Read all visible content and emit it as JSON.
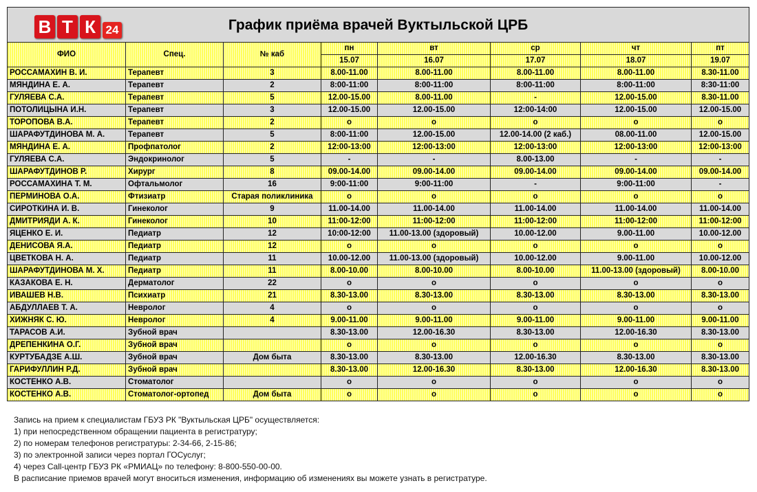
{
  "logo": {
    "letters": [
      "В",
      "Т",
      "К"
    ],
    "number": "24"
  },
  "table": {
    "title": "График приёма врачей Вуктыльской ЦРБ",
    "headers": [
      "ФИО",
      "Спец.",
      "№ каб"
    ],
    "days": [
      {
        "day": "пн",
        "date": "15.07"
      },
      {
        "day": "вт",
        "date": "16.07"
      },
      {
        "day": "ср",
        "date": "17.07"
      },
      {
        "day": "чт",
        "date": "18.07"
      },
      {
        "day": "пт",
        "date": "19.07"
      }
    ],
    "rows": [
      [
        "РОССАМАХИН В. И.",
        "Терапевт",
        "3",
        "8.00-11.00",
        "8.00-11.00",
        "8.00-11.00",
        "8.00-11.00",
        "8.30-11.00"
      ],
      [
        "МЯНДИНА Е. А.",
        "Терапевт",
        "2",
        "8:00-11:00",
        "8:00-11:00",
        "8:00-11:00",
        "8:00-11:00",
        "8:30-11:00"
      ],
      [
        "ГУЛЯЕВА С.А.",
        "Терапевт",
        "5",
        "12.00-15.00",
        "8.00-11.00",
        "-",
        "12.00-15.00",
        "8.30-11.00"
      ],
      [
        "ПОТОЛИЦЫНА И.Н.",
        "Терапевт",
        "3",
        "12.00-15.00",
        "12.00-15.00",
        "12:00-14:00",
        "12.00-15.00",
        "12.00-15.00"
      ],
      [
        "ТОРОПОВА В.А.",
        "Терапевт",
        "2",
        "о",
        "о",
        "о",
        "о",
        "о"
      ],
      [
        "ШАРАФУТДИНОВА М. А.",
        "Терапевт",
        "5",
        "8:00-11:00",
        "12.00-15.00",
        "12.00-14.00 (2 каб.)",
        "08.00-11.00",
        "12.00-15.00"
      ],
      [
        "МЯНДИНА Е. А.",
        "Профпатолог",
        "2",
        "12:00-13:00",
        "12:00-13:00",
        "12:00-13:00",
        "12:00-13:00",
        "12:00-13:00"
      ],
      [
        "ГУЛЯЕВА С.А.",
        "Эндокринолог",
        "5",
        "-",
        "-",
        "8.00-13.00",
        "-",
        "-"
      ],
      [
        "ШАРАФУТДИНОВ Р.",
        "Хирург",
        "8",
        "09.00-14.00",
        "09.00-14.00",
        "09.00-14.00",
        "09.00-14.00",
        "09.00-14.00"
      ],
      [
        "РОССАМАХИНА Т. М.",
        "Офтальмолог",
        "16",
        "9:00-11:00",
        "9:00-11:00",
        "-",
        "9:00-11:00",
        "-"
      ],
      [
        "ПЕРМИНОВА О.А.",
        "Фтизиатр",
        "Старая поликлиника",
        "о",
        "о",
        "о",
        "о",
        "о"
      ],
      [
        "СИРОТКИНА И. В.",
        "Гинеколог",
        "9",
        "11.00-14.00",
        "11.00-14.00",
        "11.00-14.00",
        "11.00-14.00",
        "11.00-14.00"
      ],
      [
        "ДМИТРИЯДИ А. К.",
        "Гинеколог",
        "10",
        "11:00-12:00",
        "11:00-12:00",
        "11:00-12:00",
        "11:00-12:00",
        "11:00-12:00"
      ],
      [
        "ЯЦЕНКО Е. И.",
        "Педиатр",
        "12",
        "10:00-12:00",
        "11.00-13.00 (здоровый)",
        "10.00-12.00",
        "9.00-11.00",
        "10.00-12.00"
      ],
      [
        "ДЕНИСОВА Я.А.",
        "Педиатр",
        "12",
        "о",
        "о",
        "о",
        "о",
        "о"
      ],
      [
        "ЦВЕТКОВА Н. А.",
        "Педиатр",
        "11",
        "10.00-12.00",
        "11.00-13.00 (здоровый)",
        "10.00-12.00",
        "9.00-11.00",
        "10.00-12.00"
      ],
      [
        "ШАРАФУТДИНОВА М. Х.",
        "Педиатр",
        "11",
        "8.00-10.00",
        "8.00-10.00",
        "8.00-10.00",
        "11.00-13.00 (здоровый)",
        "8.00-10.00"
      ],
      [
        "КАЗАКОВА Е. Н.",
        "Дерматолог",
        "22",
        "о",
        "о",
        "о",
        "о",
        "о"
      ],
      [
        "ИВАШЕВ Н.В.",
        "Психиатр",
        "21",
        "8.30-13.00",
        "8.30-13.00",
        "8.30-13.00",
        "8.30-13.00",
        "8.30-13.00"
      ],
      [
        "АБДУЛЛАЕВ Т. А.",
        "Невролог",
        "4",
        "о",
        "о",
        "о",
        "о",
        "о"
      ],
      [
        "ХИЖНЯК С. Ю.",
        "Невролог",
        "4",
        "9.00-11.00",
        "9.00-11.00",
        "9.00-11.00",
        "9.00-11.00",
        "9.00-11.00"
      ],
      [
        "ТАРАСОВ А.И.",
        "Зубной врач",
        null,
        "8.30-13.00",
        "12.00-16.30",
        "8.30-13.00",
        "12.00-16.30",
        "8.30-13.00"
      ],
      [
        "ДРЕПЕНКИНА О.Г.",
        "Зубной врач",
        null,
        "о",
        "о",
        "о",
        "о",
        "о"
      ],
      [
        "КУРТУБАДЗЕ А.Ш.",
        "Зубной врач",
        "Дом быта",
        "8.30-13.00",
        "8.30-13.00",
        "12.00-16.30",
        "8.30-13.00",
        "8.30-13.00"
      ],
      [
        "ГАРИФУЛЛИН Р.Д.",
        "Зубной врач",
        null,
        "8.30-13.00",
        "12.00-16.30",
        "8.30-13.00",
        "12.00-16.30",
        "8.30-13.00"
      ],
      [
        "КОСТЕНКО А.В.",
        "Стоматолог",
        null,
        "о",
        "о",
        "о",
        "о",
        "о"
      ],
      [
        "КОСТЕНКО А.В.",
        "Стоматолог-ортопед",
        "Дом быта",
        "о",
        "о",
        "о",
        "о",
        "о"
      ]
    ]
  },
  "footer": [
    "Запись на прием к специалистам ГБУЗ РК \"Вуктыльская ЦРБ\" осуществляется:",
    "1) при непосредственном обращении пациента в регистратуру;",
    "2) по номерам телефонов регистратуры: 2-34-66, 2-15-86;",
    "3) по электронной записи через портал ГОСуслуг;",
    "4) через Call-центр ГБУЗ РК «РМИАЦ» по телефону: 8-800-550-00-00.",
    "В расписание приемов врачей могут вноситься изменения, информацию об изменениях вы можете узнать в регистратуре."
  ]
}
